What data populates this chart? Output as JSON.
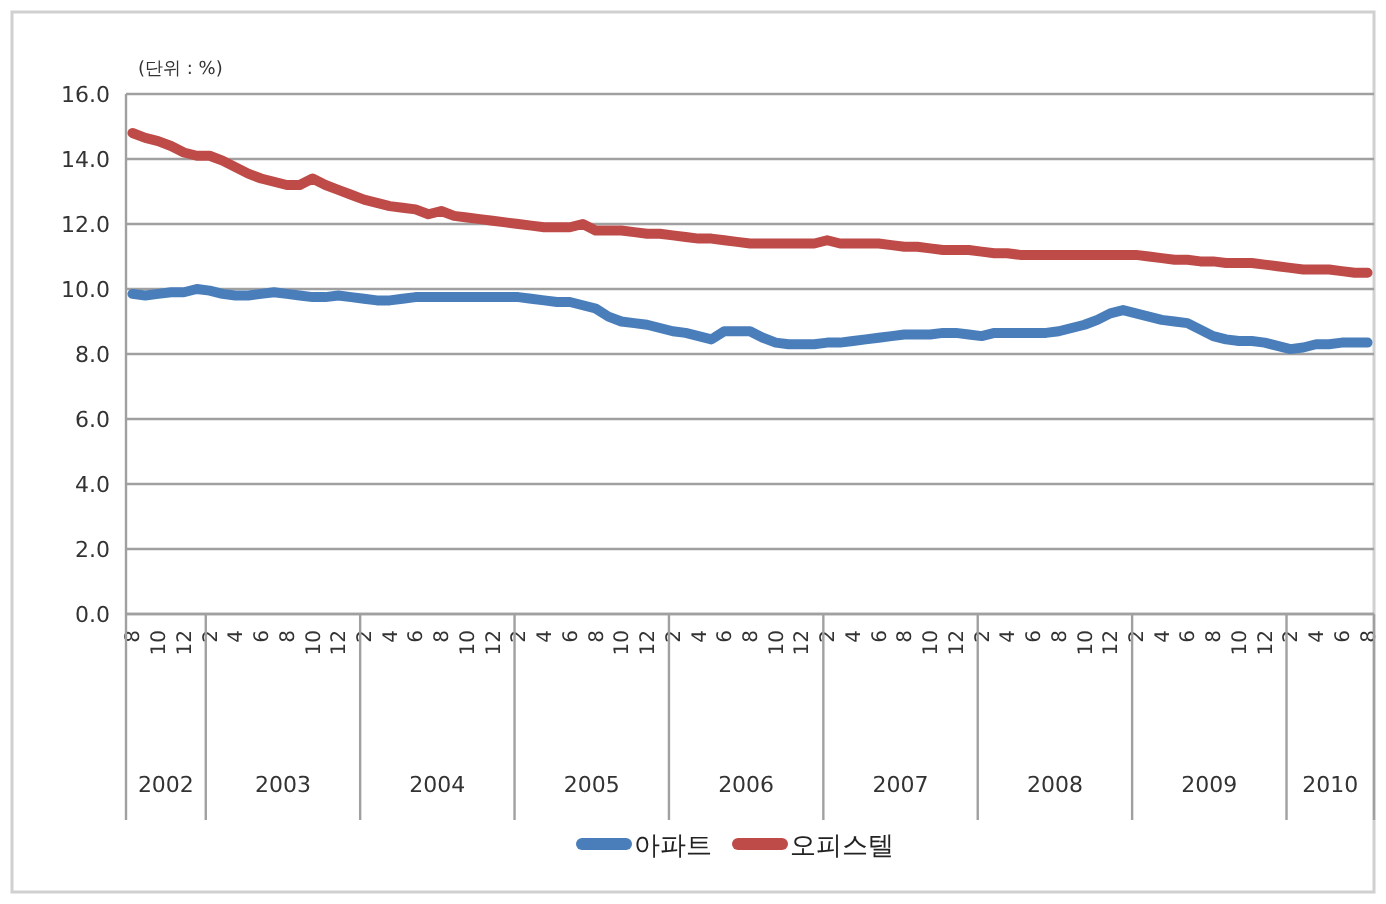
{
  "chart_data": {
    "type": "line",
    "ylabel": "(단위 : %)",
    "categories": [
      "8",
      null,
      "10",
      null,
      "12",
      null,
      "2",
      null,
      "4",
      null,
      "6",
      null,
      "8",
      null,
      "10",
      null,
      "12",
      null,
      "2",
      null,
      "4",
      null,
      "6",
      null,
      "8",
      null,
      "10",
      null,
      "12",
      null,
      "2",
      null,
      "4",
      null,
      "6",
      null,
      "8",
      null,
      "10",
      null,
      "12",
      null,
      "2",
      null,
      "4",
      null,
      "6",
      null,
      "8",
      null,
      "10",
      null,
      "12",
      null,
      "2",
      null,
      "4",
      null,
      "6",
      null,
      "8",
      null,
      "10",
      null,
      "12",
      null,
      "2",
      null,
      "4",
      null,
      "6",
      null,
      "8",
      null,
      "10",
      null,
      "12",
      null,
      "2",
      null,
      "4",
      null,
      "6",
      null,
      "8",
      null,
      "10",
      null,
      "12",
      null,
      "2",
      null,
      "4",
      null,
      "6",
      null,
      "8"
    ],
    "series": [
      {
        "name": "아파트",
        "color": "#4a7ebb",
        "values": [
          9.85,
          9.8,
          9.85,
          9.9,
          9.9,
          10.0,
          9.95,
          9.85,
          9.8,
          9.8,
          9.85,
          9.9,
          9.85,
          9.8,
          9.75,
          9.75,
          9.8,
          9.75,
          9.7,
          9.65,
          9.65,
          9.7,
          9.75,
          9.75,
          9.75,
          9.75,
          9.75,
          9.75,
          9.75,
          9.75,
          9.75,
          9.7,
          9.65,
          9.6,
          9.6,
          9.5,
          9.4,
          9.15,
          9.0,
          8.95,
          8.9,
          8.8,
          8.7,
          8.65,
          8.55,
          8.45,
          8.7,
          8.7,
          8.7,
          8.5,
          8.35,
          8.3,
          8.3,
          8.3,
          8.35,
          8.35,
          8.4,
          8.45,
          8.5,
          8.55,
          8.6,
          8.6,
          8.6,
          8.65,
          8.65,
          8.6,
          8.55,
          8.65,
          8.65,
          8.65,
          8.65,
          8.65,
          8.7,
          8.8,
          8.9,
          9.05,
          9.25,
          9.35,
          9.25,
          9.15,
          9.05,
          9.0,
          8.95,
          8.75,
          8.55,
          8.45,
          8.4,
          8.4,
          8.35,
          8.25,
          8.15,
          8.2,
          8.3,
          8.3,
          8.35,
          8.35,
          8.35
        ]
      },
      {
        "name": "오피스텔",
        "color": "#be4b48",
        "values": [
          14.8,
          14.65,
          14.55,
          14.4,
          14.2,
          14.1,
          14.1,
          13.95,
          13.75,
          13.55,
          13.4,
          13.3,
          13.2,
          13.2,
          13.4,
          13.2,
          13.05,
          12.9,
          12.75,
          12.65,
          12.55,
          12.5,
          12.45,
          12.3,
          12.4,
          12.25,
          12.2,
          12.15,
          12.1,
          12.05,
          12.0,
          11.95,
          11.9,
          11.9,
          11.9,
          12.0,
          11.8,
          11.8,
          11.8,
          11.75,
          11.7,
          11.7,
          11.65,
          11.6,
          11.55,
          11.55,
          11.5,
          11.45,
          11.4,
          11.4,
          11.4,
          11.4,
          11.4,
          11.4,
          11.5,
          11.4,
          11.4,
          11.4,
          11.4,
          11.35,
          11.3,
          11.3,
          11.25,
          11.2,
          11.2,
          11.2,
          11.15,
          11.1,
          11.1,
          11.05,
          11.05,
          11.05,
          11.05,
          11.05,
          11.05,
          11.05,
          11.05,
          11.05,
          11.05,
          11.0,
          10.95,
          10.9,
          10.9,
          10.85,
          10.85,
          10.8,
          10.8,
          10.8,
          10.75,
          10.7,
          10.65,
          10.6,
          10.6,
          10.6,
          10.55,
          10.5,
          10.5
        ]
      }
    ],
    "ylim": [
      0,
      16
    ],
    "yticks": [
      {
        "value": 0,
        "label": "0.0"
      },
      {
        "value": 2,
        "label": "2.0"
      },
      {
        "value": 4,
        "label": "4.0"
      },
      {
        "value": 6,
        "label": "6.0"
      },
      {
        "value": 8,
        "label": "8.0"
      },
      {
        "value": 10,
        "label": "10.0"
      },
      {
        "value": 12,
        "label": "12.0"
      },
      {
        "value": 14,
        "label": "14.0"
      },
      {
        "value": 16,
        "label": "16.0"
      }
    ],
    "annotations": [
      "2002",
      "2003",
      "2004",
      "2005",
      "2006",
      "2007",
      "2008",
      "2009",
      "2010"
    ],
    "grid": "y",
    "legend": "bottom",
    "marker": "none",
    "line_style": "solid"
  }
}
